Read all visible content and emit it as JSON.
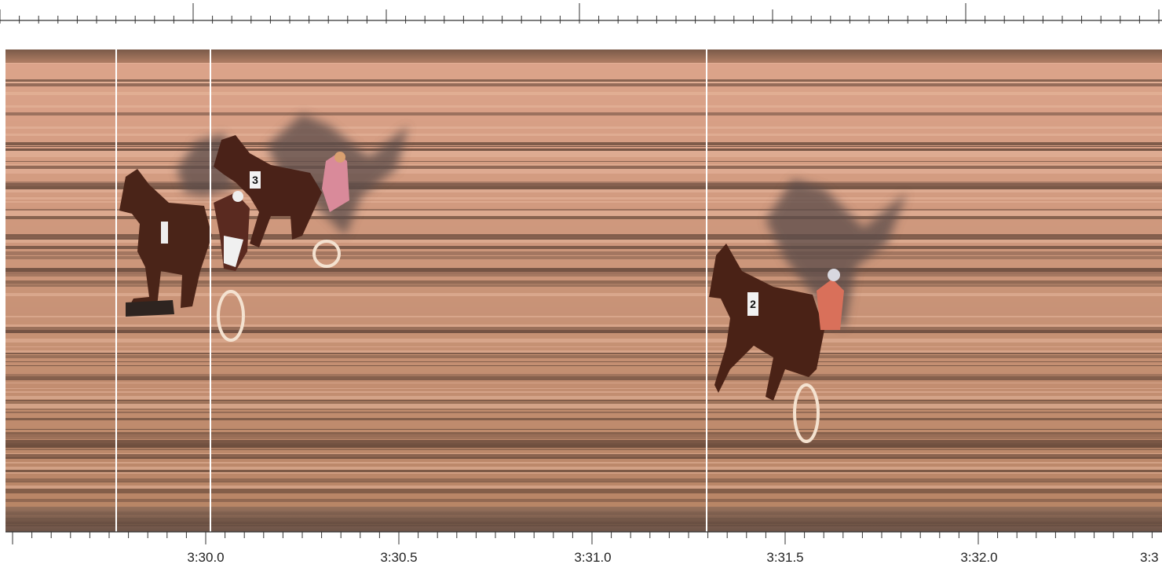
{
  "timeline": {
    "labels": [
      "3:30.0",
      "3:30.5",
      "3:31.0",
      "3:31.5",
      "3:32.0",
      "3:3"
    ]
  },
  "horses": {
    "bibs": [
      "3",
      "2"
    ]
  }
}
